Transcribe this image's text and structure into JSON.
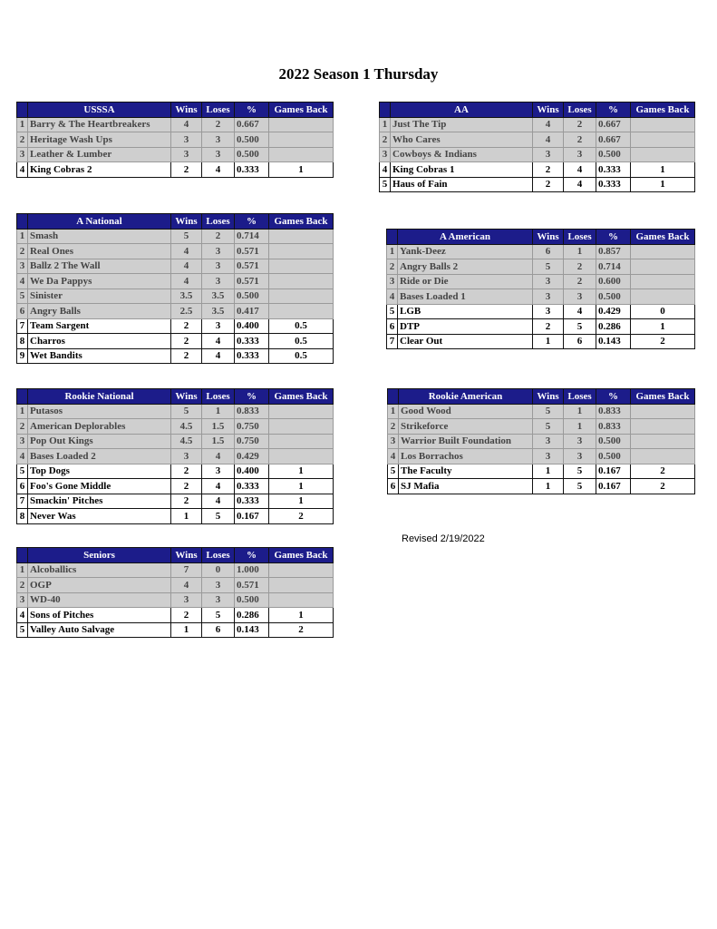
{
  "title": "2022 Season 1 Thursday",
  "revised": "Revised 2/19/2022",
  "colors": {
    "header_bg": "#1c1c8a",
    "header_text": "#ffffff",
    "shaded_row": "#cfcfcf"
  },
  "columns": {
    "wins": "Wins",
    "loses": "Loses",
    "pct": "%",
    "games_back": "Games Back"
  },
  "tables": [
    {
      "division": "USSSA",
      "rows": [
        {
          "rank": "1",
          "team": "Barry & The Heartbreakers",
          "wins": "4",
          "loses": "2",
          "pct": "0.667",
          "gb": "",
          "shaded": true
        },
        {
          "rank": "2",
          "team": "Heritage Wash Ups",
          "wins": "3",
          "loses": "3",
          "pct": "0.500",
          "gb": "",
          "shaded": true
        },
        {
          "rank": "3",
          "team": "Leather & Lumber",
          "wins": "3",
          "loses": "3",
          "pct": "0.500",
          "gb": "",
          "shaded": true
        },
        {
          "rank": "4",
          "team": "King Cobras 2",
          "wins": "2",
          "loses": "4",
          "pct": "0.333",
          "gb": "1",
          "shaded": false
        }
      ]
    },
    {
      "division": "AA",
      "rows": [
        {
          "rank": "1",
          "team": "Just The Tip",
          "wins": "4",
          "loses": "2",
          "pct": "0.667",
          "gb": "",
          "shaded": true
        },
        {
          "rank": "2",
          "team": "Who Cares",
          "wins": "4",
          "loses": "2",
          "pct": "0.667",
          "gb": "",
          "shaded": true
        },
        {
          "rank": "3",
          "team": "Cowboys & Indians",
          "wins": "3",
          "loses": "3",
          "pct": "0.500",
          "gb": "",
          "shaded": true
        },
        {
          "rank": "4",
          "team": "King Cobras 1",
          "wins": "2",
          "loses": "4",
          "pct": "0.333",
          "gb": "1",
          "shaded": false
        },
        {
          "rank": "5",
          "team": "Haus of Fain",
          "wins": "2",
          "loses": "4",
          "pct": "0.333",
          "gb": "1",
          "shaded": false
        }
      ]
    },
    {
      "division": "A National",
      "rows": [
        {
          "rank": "1",
          "team": "Smash",
          "wins": "5",
          "loses": "2",
          "pct": "0.714",
          "gb": "",
          "shaded": true
        },
        {
          "rank": "2",
          "team": "Real Ones",
          "wins": "4",
          "loses": "3",
          "pct": "0.571",
          "gb": "",
          "shaded": true
        },
        {
          "rank": "3",
          "team": "Ballz 2 The Wall",
          "wins": "4",
          "loses": "3",
          "pct": "0.571",
          "gb": "",
          "shaded": true
        },
        {
          "rank": "4",
          "team": "We Da Pappys",
          "wins": "4",
          "loses": "3",
          "pct": "0.571",
          "gb": "",
          "shaded": true
        },
        {
          "rank": "5",
          "team": "Sinister",
          "wins": "3.5",
          "loses": "3.5",
          "pct": "0.500",
          "gb": "",
          "shaded": true
        },
        {
          "rank": "6",
          "team": "Angry Balls",
          "wins": "2.5",
          "loses": "3.5",
          "pct": "0.417",
          "gb": "",
          "shaded": true
        },
        {
          "rank": "7",
          "team": "Team Sargent",
          "wins": "2",
          "loses": "3",
          "pct": "0.400",
          "gb": "0.5",
          "shaded": false
        },
        {
          "rank": "8",
          "team": "Charros",
          "wins": "2",
          "loses": "4",
          "pct": "0.333",
          "gb": "0.5",
          "shaded": false
        },
        {
          "rank": "9",
          "team": "Wet Bandits",
          "wins": "2",
          "loses": "4",
          "pct": "0.333",
          "gb": "0.5",
          "shaded": false
        }
      ]
    },
    {
      "division": "A American",
      "rows": [
        {
          "rank": "1",
          "team": "Yank-Deez",
          "wins": "6",
          "loses": "1",
          "pct": "0.857",
          "gb": "",
          "shaded": true
        },
        {
          "rank": "2",
          "team": "Angry Balls 2",
          "wins": "5",
          "loses": "2",
          "pct": "0.714",
          "gb": "",
          "shaded": true
        },
        {
          "rank": "3",
          "team": "Ride or Die",
          "wins": "3",
          "loses": "2",
          "pct": "0.600",
          "gb": "",
          "shaded": true
        },
        {
          "rank": "4",
          "team": "Bases Loaded 1",
          "wins": "3",
          "loses": "3",
          "pct": "0.500",
          "gb": "",
          "shaded": true
        },
        {
          "rank": "5",
          "team": "LGB",
          "wins": "3",
          "loses": "4",
          "pct": "0.429",
          "gb": "0",
          "shaded": false
        },
        {
          "rank": "6",
          "team": "DTP",
          "wins": "2",
          "loses": "5",
          "pct": "0.286",
          "gb": "1",
          "shaded": false
        },
        {
          "rank": "7",
          "team": "Clear Out",
          "wins": "1",
          "loses": "6",
          "pct": "0.143",
          "gb": "2",
          "shaded": false
        }
      ]
    },
    {
      "division": "Rookie National",
      "rows": [
        {
          "rank": "1",
          "team": "Putasos",
          "wins": "5",
          "loses": "1",
          "pct": "0.833",
          "gb": "",
          "shaded": true
        },
        {
          "rank": "2",
          "team": "American Deplorables",
          "wins": "4.5",
          "loses": "1.5",
          "pct": "0.750",
          "gb": "",
          "shaded": true
        },
        {
          "rank": "3",
          "team": "Pop Out Kings",
          "wins": "4.5",
          "loses": "1.5",
          "pct": "0.750",
          "gb": "",
          "shaded": true
        },
        {
          "rank": "4",
          "team": "Bases Loaded 2",
          "wins": "3",
          "loses": "4",
          "pct": "0.429",
          "gb": "",
          "shaded": true
        },
        {
          "rank": "5",
          "team": "Top Dogs",
          "wins": "2",
          "loses": "3",
          "pct": "0.400",
          "gb": "1",
          "shaded": false
        },
        {
          "rank": "6",
          "team": "Foo's Gone Middle",
          "wins": "2",
          "loses": "4",
          "pct": "0.333",
          "gb": "1",
          "shaded": false
        },
        {
          "rank": "7",
          "team": "Smackin' Pitches",
          "wins": "2",
          "loses": "4",
          "pct": "0.333",
          "gb": "1",
          "shaded": false
        },
        {
          "rank": "8",
          "team": "Never Was",
          "wins": "1",
          "loses": "5",
          "pct": "0.167",
          "gb": "2",
          "shaded": false
        }
      ]
    },
    {
      "division": "Rookie American",
      "rows": [
        {
          "rank": "1",
          "team": "Good Wood",
          "wins": "5",
          "loses": "1",
          "pct": "0.833",
          "gb": "",
          "shaded": true
        },
        {
          "rank": "2",
          "team": "Strikeforce",
          "wins": "5",
          "loses": "1",
          "pct": "0.833",
          "gb": "",
          "shaded": true
        },
        {
          "rank": "3",
          "team": "Warrior Built Foundation",
          "wins": "3",
          "loses": "3",
          "pct": "0.500",
          "gb": "",
          "shaded": true
        },
        {
          "rank": "4",
          "team": "Los Borrachos",
          "wins": "3",
          "loses": "3",
          "pct": "0.500",
          "gb": "",
          "shaded": true
        },
        {
          "rank": "5",
          "team": "The Faculty",
          "wins": "1",
          "loses": "5",
          "pct": "0.167",
          "gb": "2",
          "shaded": false
        },
        {
          "rank": "6",
          "team": "SJ Mafia",
          "wins": "1",
          "loses": "5",
          "pct": "0.167",
          "gb": "2",
          "shaded": false
        }
      ]
    },
    {
      "division": "Seniors",
      "rows": [
        {
          "rank": "1",
          "team": "Alcoballics",
          "wins": "7",
          "loses": "0",
          "pct": "1.000",
          "gb": "",
          "shaded": true
        },
        {
          "rank": "2",
          "team": "OGP",
          "wins": "4",
          "loses": "3",
          "pct": "0.571",
          "gb": "",
          "shaded": true
        },
        {
          "rank": "3",
          "team": "WD-40",
          "wins": "3",
          "loses": "3",
          "pct": "0.500",
          "gb": "",
          "shaded": true
        },
        {
          "rank": "4",
          "team": "Sons of Pitches",
          "wins": "2",
          "loses": "5",
          "pct": "0.286",
          "gb": "1",
          "shaded": false
        },
        {
          "rank": "5",
          "team": "Valley Auto Salvage",
          "wins": "1",
          "loses": "6",
          "pct": "0.143",
          "gb": "2",
          "shaded": false
        }
      ]
    }
  ]
}
